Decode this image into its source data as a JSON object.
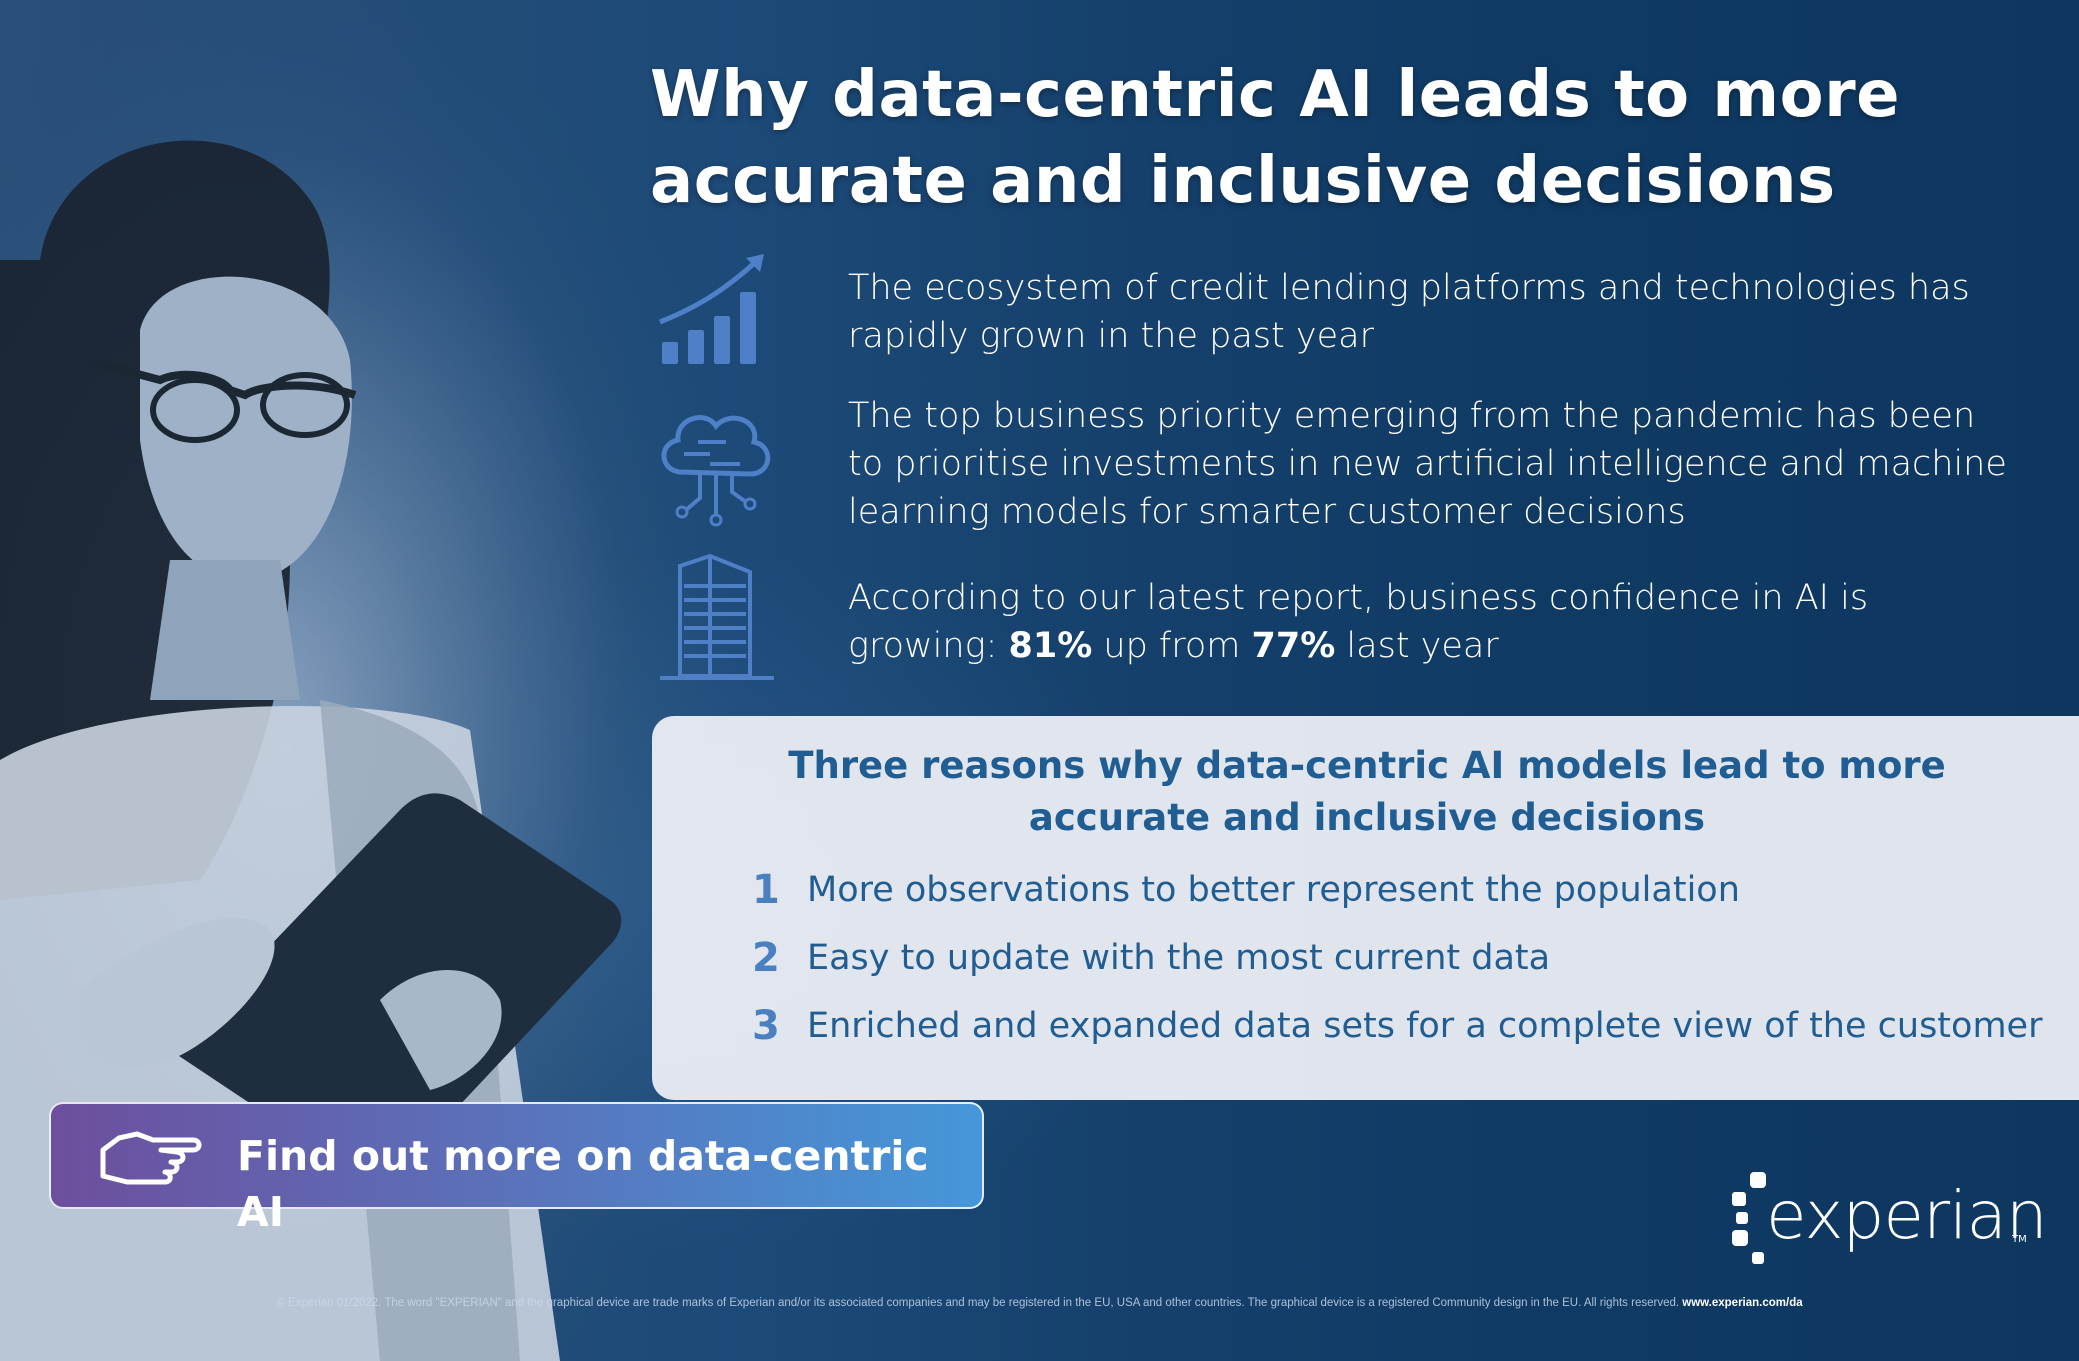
{
  "title": "Why data-centric AI leads to more accurate and inclusive decisions",
  "facts": [
    {
      "icon": "growth-chart-icon",
      "text": "The ecosystem of credit lending platforms and technologies has rapidly grown in the past year"
    },
    {
      "icon": "ai-brain-icon",
      "text": "The top business priority emerging from the pandemic has been to prioritise investments in new artificial intelligence and machine learning models for smarter customer decisions"
    },
    {
      "icon": "building-icon",
      "text_before": "According to our latest report, business confidence in AI is growing: ",
      "stat1": "81%",
      "text_middle": " up from ",
      "stat2": "77%",
      "text_after": " last year"
    }
  ],
  "panel": {
    "title": "Three reasons why data-centric AI models lead to more accurate and inclusive decisions",
    "reasons": [
      {
        "num": "1",
        "text": "More observations to better represent the population"
      },
      {
        "num": "2",
        "text": "Easy to update with the most current data"
      },
      {
        "num": "3",
        "text": "Enriched and expanded data sets for a complete view of the customer"
      }
    ]
  },
  "cta": {
    "label": "Find out more on data-centric AI",
    "icon": "pointing-hand-icon"
  },
  "logo": {
    "wordmark": "experian",
    "tm": "TM"
  },
  "footer": {
    "text": "© Experian 01/2022. The word \"EXPERIAN\" and the graphical device are trade marks of Experian and/or its associated companies and may be registered in the EU, USA and other countries. The graphical device is a registered Community design in the EU. All rights reserved. ",
    "url": "www.experian.com/da"
  },
  "colors": {
    "background": "#0f3558",
    "accent_blue": "#1f5d93",
    "icon_blue": "#4f7fc6",
    "cta_start": "#6d4f9e",
    "cta_end": "#4597d9"
  }
}
